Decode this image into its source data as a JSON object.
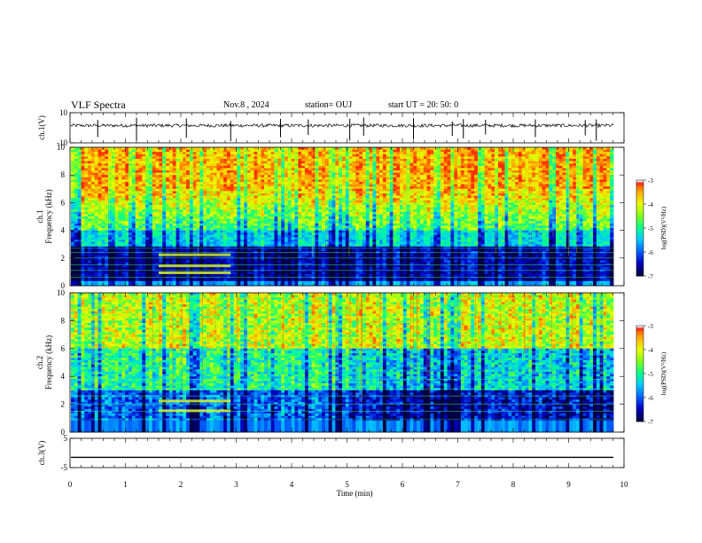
{
  "header": {
    "title": "VLF Spectra",
    "date": "Nov.8 , 2024",
    "station": "station= OUJ",
    "start": "start UT = 20: 50: 0"
  },
  "colors": {
    "ramp": [
      "#000040",
      "#0000c0",
      "#0060ff",
      "#00c8ff",
      "#00ff90",
      "#80ff20",
      "#e8ff00",
      "#ffb000",
      "#ff3000"
    ],
    "bar_top": [
      "#ffffff",
      "#ff6060",
      "#ff2000"
    ]
  },
  "chart_data": [
    {
      "type": "line",
      "panel": "ch1-waveform",
      "ylabel": "ch.1(V)",
      "y_ticks": [
        "10",
        "-10"
      ],
      "ylim": [
        -10,
        10
      ],
      "x_range": [
        0,
        10
      ],
      "description_free": true
    },
    {
      "type": "heatmap",
      "panel": "ch1-spectrogram",
      "ylabel": "ch.1\nFrequency (kHz)",
      "ylabel_lines": [
        "ch.1",
        "Frequency (kHz)"
      ],
      "y_ticks": [
        "0",
        "2",
        "4",
        "6",
        "8",
        "10"
      ],
      "ylim": [
        0,
        10
      ],
      "x_range": [
        0,
        10
      ],
      "colorbar": {
        "ticks": [
          "-3",
          "-4",
          "-5",
          "-6",
          "-7"
        ],
        "range": [
          -7,
          -3
        ],
        "label": "log(PSD)(V²/Hz)"
      }
    },
    {
      "type": "heatmap",
      "panel": "ch2-spectrogram",
      "ylabel": "ch.2\nFrequency (kHz)",
      "ylabel_lines": [
        "ch.2",
        "Frequency (kHz)"
      ],
      "y_ticks": [
        "0",
        "2",
        "4",
        "6",
        "8",
        "10"
      ],
      "ylim": [
        0,
        10
      ],
      "x_range": [
        0,
        10
      ],
      "colorbar": {
        "ticks": [
          "-3",
          "-4",
          "-5",
          "-6",
          "-7"
        ],
        "range": [
          -7,
          -3
        ],
        "label": "log(PSD)(V²/Hz)"
      }
    },
    {
      "type": "line",
      "panel": "ch3-waveform",
      "ylabel": "ch.3(V)",
      "y_ticks": [
        "5",
        "-5"
      ],
      "ylim": [
        -5,
        5
      ],
      "x_range": [
        0,
        10
      ],
      "x_ticks": [
        "0",
        "1",
        "2",
        "3",
        "4",
        "5",
        "6",
        "7",
        "8",
        "9",
        "10"
      ],
      "xlabel": "Time (min)",
      "constant_value": -1.5
    }
  ]
}
